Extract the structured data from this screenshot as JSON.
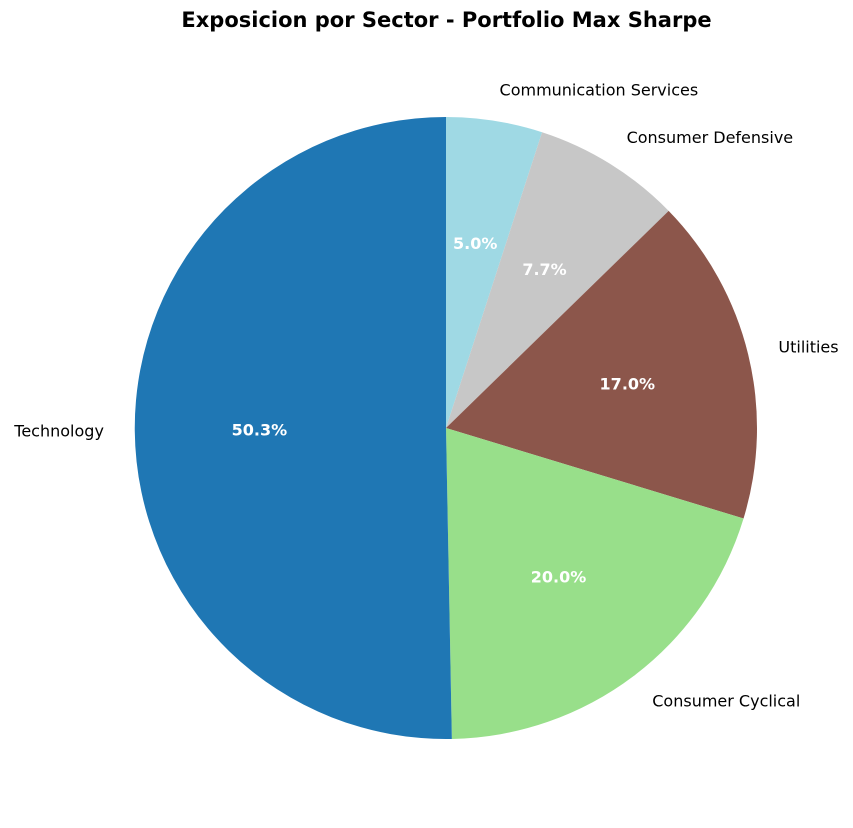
{
  "chart_data": {
    "type": "pie",
    "title": "Exposicion por Sector - Portfolio Max Sharpe",
    "slices": [
      {
        "label": "Communication Services",
        "value": 5.0,
        "pct_text": "5.0%",
        "color": "#9fd9e4"
      },
      {
        "label": "Consumer Defensive",
        "value": 7.7,
        "pct_text": "7.7%",
        "color": "#c7c7c7"
      },
      {
        "label": "Utilities",
        "value": 17.0,
        "pct_text": "17.0%",
        "color": "#8c564b"
      },
      {
        "label": "Consumer Cyclical",
        "value": 20.0,
        "pct_text": "20.0%",
        "color": "#98df8a"
      },
      {
        "label": "Technology",
        "value": 50.3,
        "pct_text": "50.3%",
        "color": "#1f77b4"
      }
    ],
    "start_angle": "12 o'clock",
    "direction": "clockwise"
  }
}
